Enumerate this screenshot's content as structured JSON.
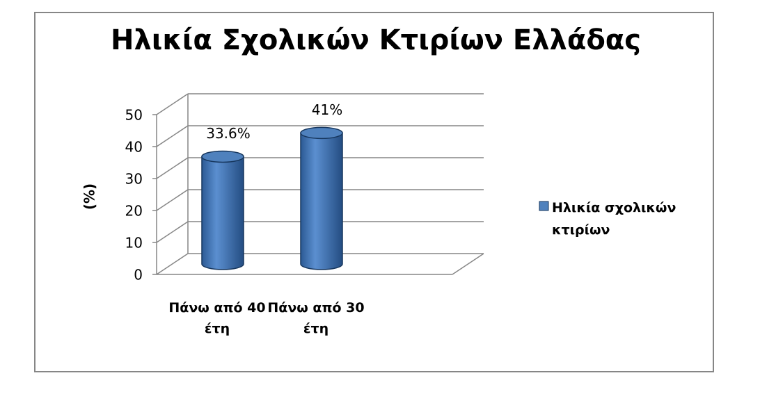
{
  "chart_data": {
    "type": "bar3d",
    "title": "Ηλικία Σχολικών Κτιρίων Ελλάδας",
    "y_label": "(%)",
    "categories": [
      "Πάνω από 40 έτη",
      "Πάνω από 30 έτη"
    ],
    "series": [
      {
        "name": "Ηλικία σχολικών κτιρίων",
        "color": "#4f81bd",
        "values": [
          33.6,
          41
        ],
        "value_labels": [
          "33.6%",
          "41%"
        ]
      }
    ],
    "ylim": [
      0,
      50
    ],
    "yticks": [
      0,
      10,
      20,
      30,
      40,
      50
    ],
    "grid": true,
    "legend": "right"
  }
}
